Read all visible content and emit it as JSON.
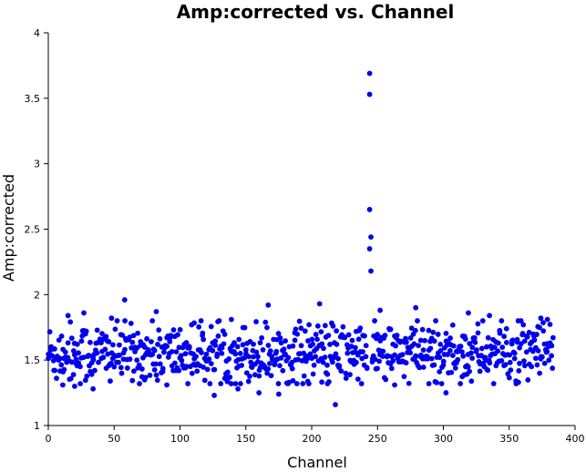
{
  "chart_data": {
    "type": "scatter",
    "title": "Amp:corrected vs. Channel",
    "xlabel": "Channel",
    "ylabel": "Amp:corrected",
    "xlim": [
      0,
      400
    ],
    "ylim": [
      1,
      4
    ],
    "xticks": [
      0,
      50,
      100,
      150,
      200,
      250,
      300,
      350,
      400
    ],
    "yticks": [
      1,
      1.5,
      2,
      2.5,
      3,
      3.5,
      4
    ],
    "grid": false,
    "legend": "none",
    "marker_color": "#0000ee",
    "x_range_channels": [
      0,
      383
    ],
    "typical_y_range": [
      1.3,
      1.8
    ],
    "series": [
      {
        "points": [
          [
            244,
            3.69
          ],
          [
            244,
            3.53
          ],
          [
            244,
            2.65
          ],
          [
            245,
            2.44
          ],
          [
            244,
            2.35
          ],
          [
            245,
            2.18
          ],
          [
            58,
            1.96
          ],
          [
            167,
            1.92
          ],
          [
            206,
            1.93
          ],
          [
            279,
            1.9
          ],
          [
            27,
            1.86
          ],
          [
            82,
            1.87
          ],
          [
            319,
            1.86
          ],
          [
            15,
            1.84
          ],
          [
            48,
            1.82
          ],
          [
            139,
            1.81
          ],
          [
            198,
            1.77
          ],
          [
            252,
            1.88
          ],
          [
            335,
            1.84
          ],
          [
            374,
            1.82
          ],
          [
            379,
            1.81
          ],
          [
            218,
            1.16
          ],
          [
            126,
            1.23
          ],
          [
            160,
            1.25
          ],
          [
            175,
            1.24
          ],
          [
            302,
            1.25
          ],
          [
            11,
            1.31
          ],
          [
            20,
            1.3
          ],
          [
            34,
            1.28
          ],
          [
            90,
            1.31
          ],
          [
            144,
            1.28
          ],
          [
            212,
            1.32
          ],
          [
            263,
            1.31
          ],
          [
            289,
            1.32
          ],
          [
            357,
            1.33
          ]
        ]
      }
    ]
  }
}
